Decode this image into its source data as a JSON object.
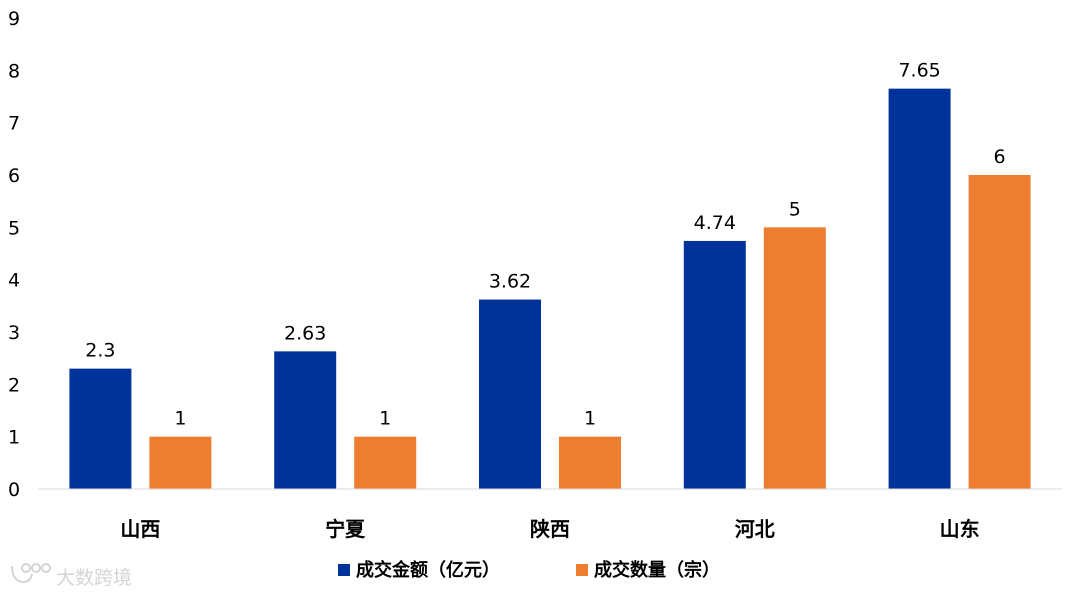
{
  "chart_data": {
    "type": "bar",
    "categories": [
      "山西",
      "宁夏",
      "陕西",
      "河北",
      "山东"
    ],
    "series": [
      {
        "name": "成交金额（亿元）",
        "values": [
          2.3,
          2.63,
          3.62,
          4.74,
          7.65
        ],
        "labels": [
          "2.3",
          "2.63",
          "3.62",
          "4.74",
          "7.65"
        ],
        "color": "#003399"
      },
      {
        "name": "成交数量（宗）",
        "values": [
          1,
          1,
          1,
          5,
          6
        ],
        "labels": [
          "1",
          "1",
          "1",
          "5",
          "6"
        ],
        "color": "#ED7D31"
      }
    ],
    "ylim": [
      0,
      9
    ],
    "yticks": [
      "0",
      "1",
      "2",
      "3",
      "4",
      "5",
      "6",
      "7",
      "8",
      "9"
    ],
    "legend_position": "bottom",
    "grid": false
  },
  "watermark": {
    "text": "大数跨境"
  }
}
